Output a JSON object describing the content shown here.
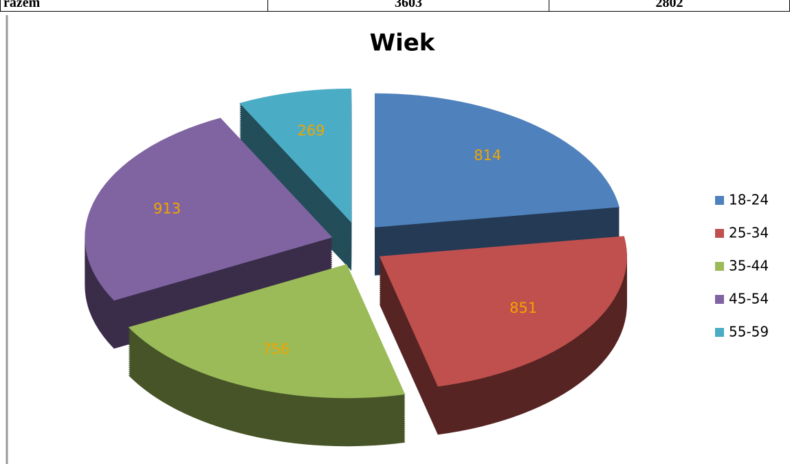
{
  "table": {
    "rows": [
      [
        "razem",
        "3603",
        "2802"
      ]
    ]
  },
  "chart_data": {
    "type": "pie",
    "title": "Wiek",
    "categories": [
      "18-24",
      "25-34",
      "35-44",
      "45-54",
      "55-59"
    ],
    "values": [
      814,
      851,
      756,
      913,
      269
    ],
    "colors": [
      "#4f81bd",
      "#c0504d",
      "#9bbb59",
      "#8064a2",
      "#4bacc6"
    ],
    "label_color": "#f0a500",
    "legend": "right",
    "exploded": true,
    "3d": true
  }
}
